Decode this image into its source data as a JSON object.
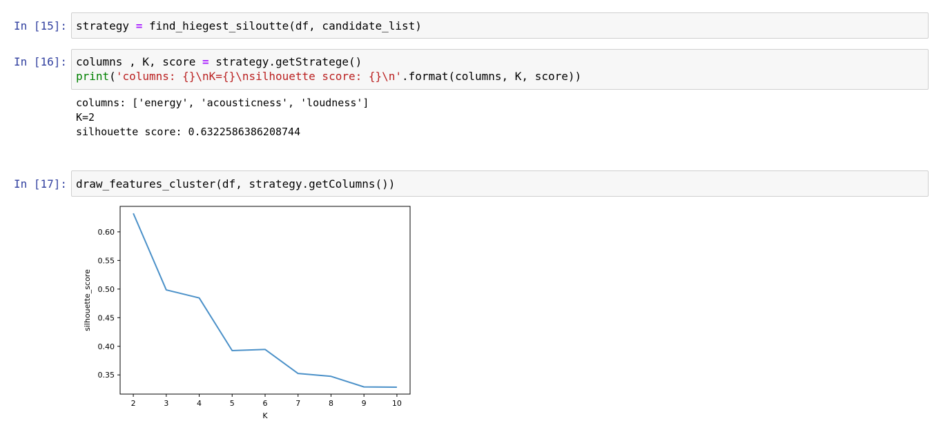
{
  "cells": [
    {
      "prompt": "In [15]:",
      "code": {
        "part1": "strategy ",
        "op": "=",
        "part2": " find_hiegest_siloutte(df, candidate_list)"
      }
    },
    {
      "prompt": "In [16]:",
      "code_line1": {
        "part1": "columns , K, score ",
        "op": "=",
        "part2": " strategy.getStratege()"
      },
      "code_line2": {
        "fn": "print",
        "open": "(",
        "str": "'columns: {}\\nK={}\\nsilhouette score: {}\\n'",
        "rest": ".format(columns, K, score))"
      },
      "output": [
        "columns: ['energy', 'acousticness', 'loudness']",
        "K=2",
        "silhouette score: 0.6322586386208744"
      ]
    },
    {
      "prompt": "In [17]:",
      "code": "draw_features_cluster(df, strategy.getColumns())"
    }
  ],
  "chart_data": {
    "type": "line",
    "x": [
      2,
      3,
      4,
      5,
      6,
      7,
      8,
      9,
      10
    ],
    "y": [
      0.6323,
      0.4985,
      0.4845,
      0.3925,
      0.3945,
      0.3525,
      0.3475,
      0.329,
      0.3285
    ],
    "xlabel": "K",
    "ylabel": "silhouette_score",
    "xlim": [
      1.6,
      10.4
    ],
    "ylim": [
      0.3165,
      0.6445
    ],
    "xticks": [
      "2",
      "3",
      "4",
      "5",
      "6",
      "7",
      "8",
      "9",
      "10"
    ],
    "yticks": [
      "0.35",
      "0.40",
      "0.45",
      "0.50",
      "0.55",
      "0.60"
    ],
    "ytick_values": [
      0.35,
      0.4,
      0.45,
      0.5,
      0.55,
      0.6
    ],
    "line_color": "#4a90c8",
    "grid": false
  }
}
